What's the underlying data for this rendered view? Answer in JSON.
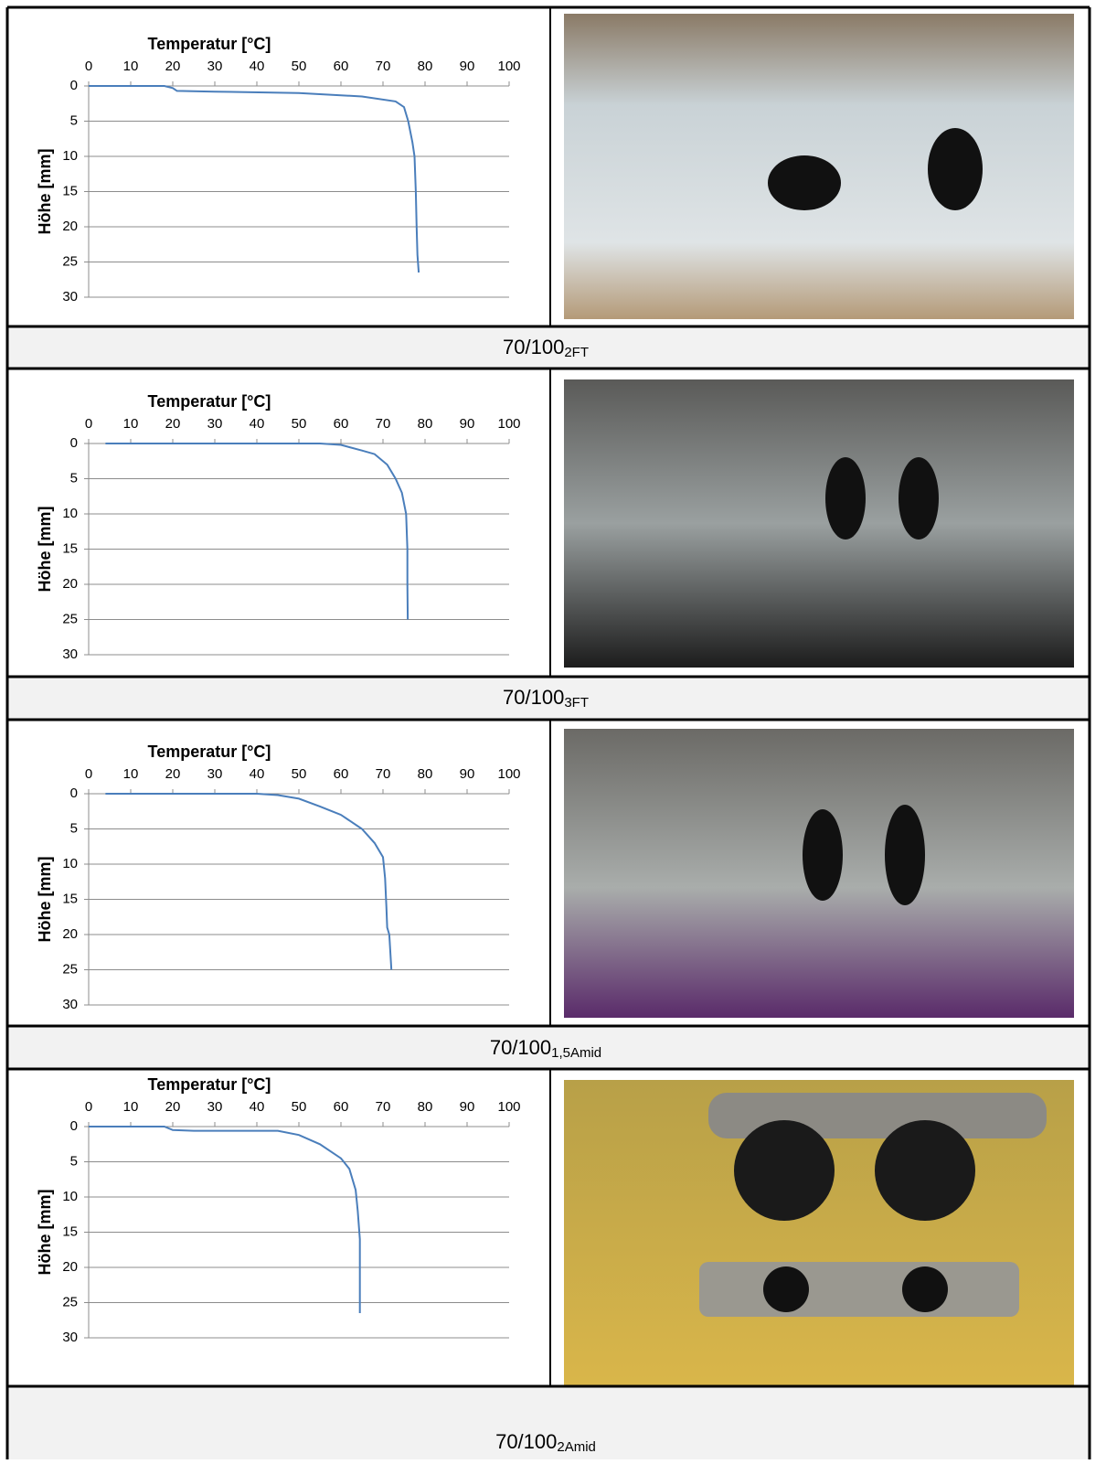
{
  "chart_data": [
    {
      "type": "line",
      "xlabel": "Temperatur [°C]",
      "ylabel": "Höhe [mm]",
      "xlim": [
        0,
        100
      ],
      "xticks": [
        0,
        10,
        20,
        30,
        40,
        50,
        60,
        70,
        80,
        90,
        100
      ],
      "ylim": [
        0,
        30
      ],
      "yticks": [
        0,
        5,
        10,
        15,
        20,
        25,
        30
      ],
      "y_inverted": true,
      "grid": true,
      "series": [
        {
          "color": "#4a7ebb",
          "x": [
            0,
            18,
            20,
            21,
            30,
            50,
            65,
            73,
            75,
            76,
            77,
            77.5,
            77.8,
            78,
            78.2,
            78.5
          ],
          "values": [
            0,
            0,
            0.3,
            0.7,
            0.8,
            1.0,
            1.5,
            2.2,
            3,
            5,
            8,
            10,
            15,
            20,
            24,
            26.5
          ]
        }
      ]
    },
    {
      "type": "line",
      "xlabel": "Temperatur [°C]",
      "ylabel": "Höhe [mm]",
      "xlim": [
        0,
        100
      ],
      "xticks": [
        0,
        10,
        20,
        30,
        40,
        50,
        60,
        70,
        80,
        90,
        100
      ],
      "ylim": [
        0,
        30
      ],
      "yticks": [
        0,
        5,
        10,
        15,
        20,
        25,
        30
      ],
      "y_inverted": true,
      "grid": true,
      "series": [
        {
          "color": "#4a7ebb",
          "x": [
            4,
            55,
            60,
            65,
            68,
            71,
            73,
            74.5,
            75.5,
            75.8,
            75.8,
            75.9
          ],
          "values": [
            0,
            0,
            0.2,
            1.0,
            1.5,
            3,
            5,
            7,
            10,
            15,
            20,
            25
          ]
        }
      ]
    },
    {
      "type": "line",
      "xlabel": "Temperatur [°C]",
      "ylabel": "Höhe [mm]",
      "xlim": [
        0,
        100
      ],
      "xticks": [
        0,
        10,
        20,
        30,
        40,
        50,
        60,
        70,
        80,
        90,
        100
      ],
      "ylim": [
        0,
        30
      ],
      "yticks": [
        0,
        5,
        10,
        15,
        20,
        25,
        30
      ],
      "y_inverted": true,
      "grid": true,
      "series": [
        {
          "color": "#4a7ebb",
          "x": [
            4,
            40,
            45,
            50,
            55,
            60,
            65,
            68,
            70,
            70.5,
            70.8,
            71,
            71.5,
            72
          ],
          "values": [
            0,
            0,
            0.2,
            0.7,
            1.8,
            3,
            5,
            7,
            9,
            12,
            16,
            19,
            20,
            25
          ]
        }
      ]
    },
    {
      "type": "line",
      "xlabel": "Temperatur [°C]",
      "ylabel": "Höhe [mm]",
      "xlim": [
        0,
        100
      ],
      "xticks": [
        0,
        10,
        20,
        30,
        40,
        50,
        60,
        70,
        80,
        90,
        100
      ],
      "ylim": [
        0,
        30
      ],
      "yticks": [
        0,
        5,
        10,
        15,
        20,
        25,
        30
      ],
      "y_inverted": true,
      "grid": true,
      "series": [
        {
          "color": "#4a7ebb",
          "x": [
            0,
            18,
            20,
            25,
            45,
            50,
            55,
            60,
            62,
            63.5,
            64,
            64.5,
            64.5,
            64.5
          ],
          "values": [
            0,
            0,
            0.5,
            0.6,
            0.6,
            1.2,
            2.5,
            4.5,
            6,
            9,
            12,
            16,
            20,
            26.5
          ]
        }
      ]
    }
  ],
  "captions": [
    {
      "text": "70/100",
      "subscript": "2FT"
    },
    {
      "text": "70/100",
      "subscript": "3FT"
    },
    {
      "text": "70/100",
      "subscript": "1,5Amid"
    },
    {
      "text": "70/100",
      "subscript": "2Amid"
    }
  ]
}
